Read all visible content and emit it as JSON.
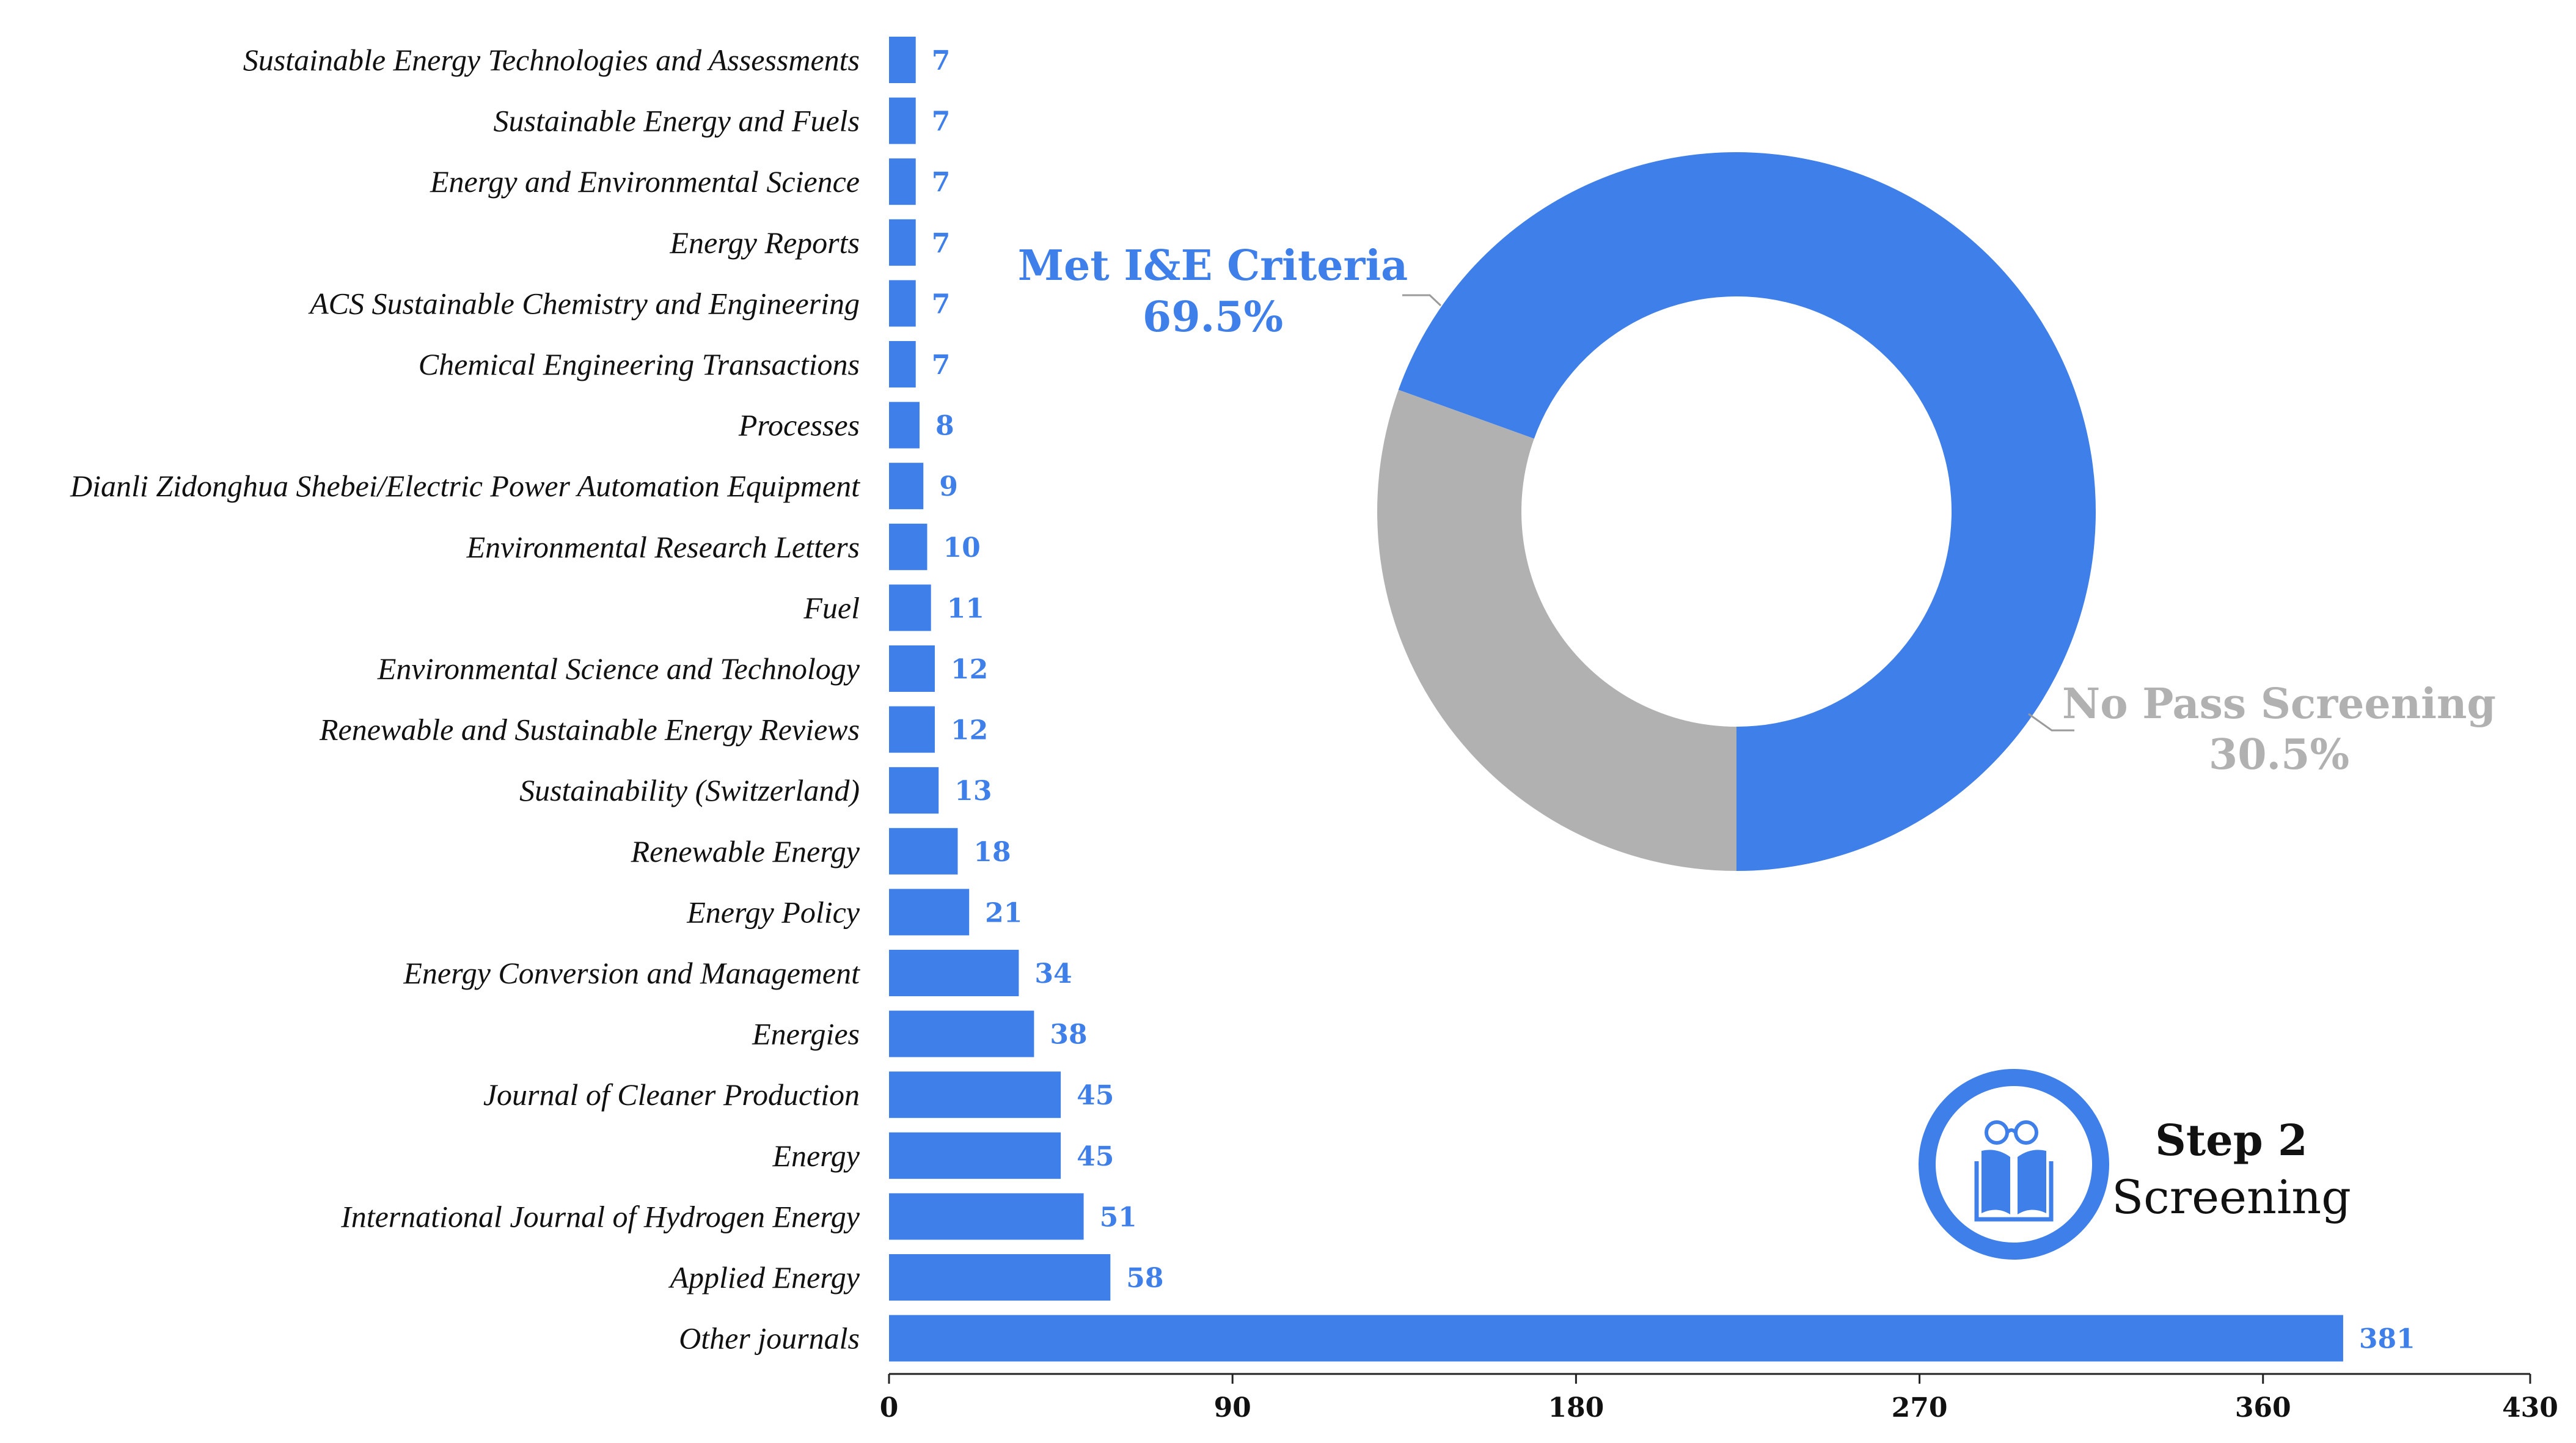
{
  "colors": {
    "bar": "#3f7fea",
    "value_text": "#3f7fea",
    "met": "#3f7fea",
    "nopass": "#b1b1b1",
    "nopass_text": "#b1b1b1",
    "axis": "#222222",
    "leader": "#9a9a9a"
  },
  "chart_data": [
    {
      "type": "bar",
      "orientation": "horizontal",
      "categories": [
        "Sustainable Energy Technologies and Assessments",
        "Sustainable Energy and Fuels",
        "Energy and Environmental Science",
        "Energy Reports",
        "ACS Sustainable Chemistry and Engineering",
        "Chemical Engineering Transactions",
        "Processes",
        "Dianli Zidonghua Shebei/Electric Power Automation Equipment",
        "Environmental Research Letters",
        "Fuel",
        "Environmental Science and Technology",
        "Renewable and Sustainable Energy Reviews",
        "Sustainability (Switzerland)",
        "Renewable Energy",
        "Energy Policy",
        "Energy Conversion and Management",
        "Energies",
        "Journal of Cleaner Production",
        "Energy",
        "International Journal of Hydrogen Energy",
        "Applied Energy",
        "Other journals"
      ],
      "values": [
        7,
        7,
        7,
        7,
        7,
        7,
        8,
        9,
        10,
        11,
        12,
        12,
        13,
        18,
        21,
        34,
        38,
        45,
        45,
        51,
        58,
        381
      ],
      "value_labels": [
        "7",
        "7",
        "7",
        "7",
        "7",
        "7",
        "8",
        "9",
        "10",
        "11",
        "12",
        "12",
        "13",
        "18",
        "21",
        "34",
        "38",
        "45",
        "45",
        "51",
        "58",
        "381"
      ],
      "xlim": [
        0,
        430
      ],
      "xticks": [
        "0",
        "90",
        "180",
        "270",
        "360",
        "430"
      ],
      "xtick_values": [
        0,
        90,
        180,
        270,
        360,
        430
      ],
      "grid": false
    },
    {
      "type": "pie",
      "donut": true,
      "slices": [
        {
          "name": "Met I&E Criteria",
          "value": 69.5,
          "label": "69.5%"
        },
        {
          "name": "No Pass Screening",
          "value": 30.5,
          "label": "30.5%"
        }
      ]
    }
  ],
  "badge": {
    "icon": "open-book-with-glasses-icon",
    "title": "Step 2",
    "subtitle": "Screening"
  }
}
